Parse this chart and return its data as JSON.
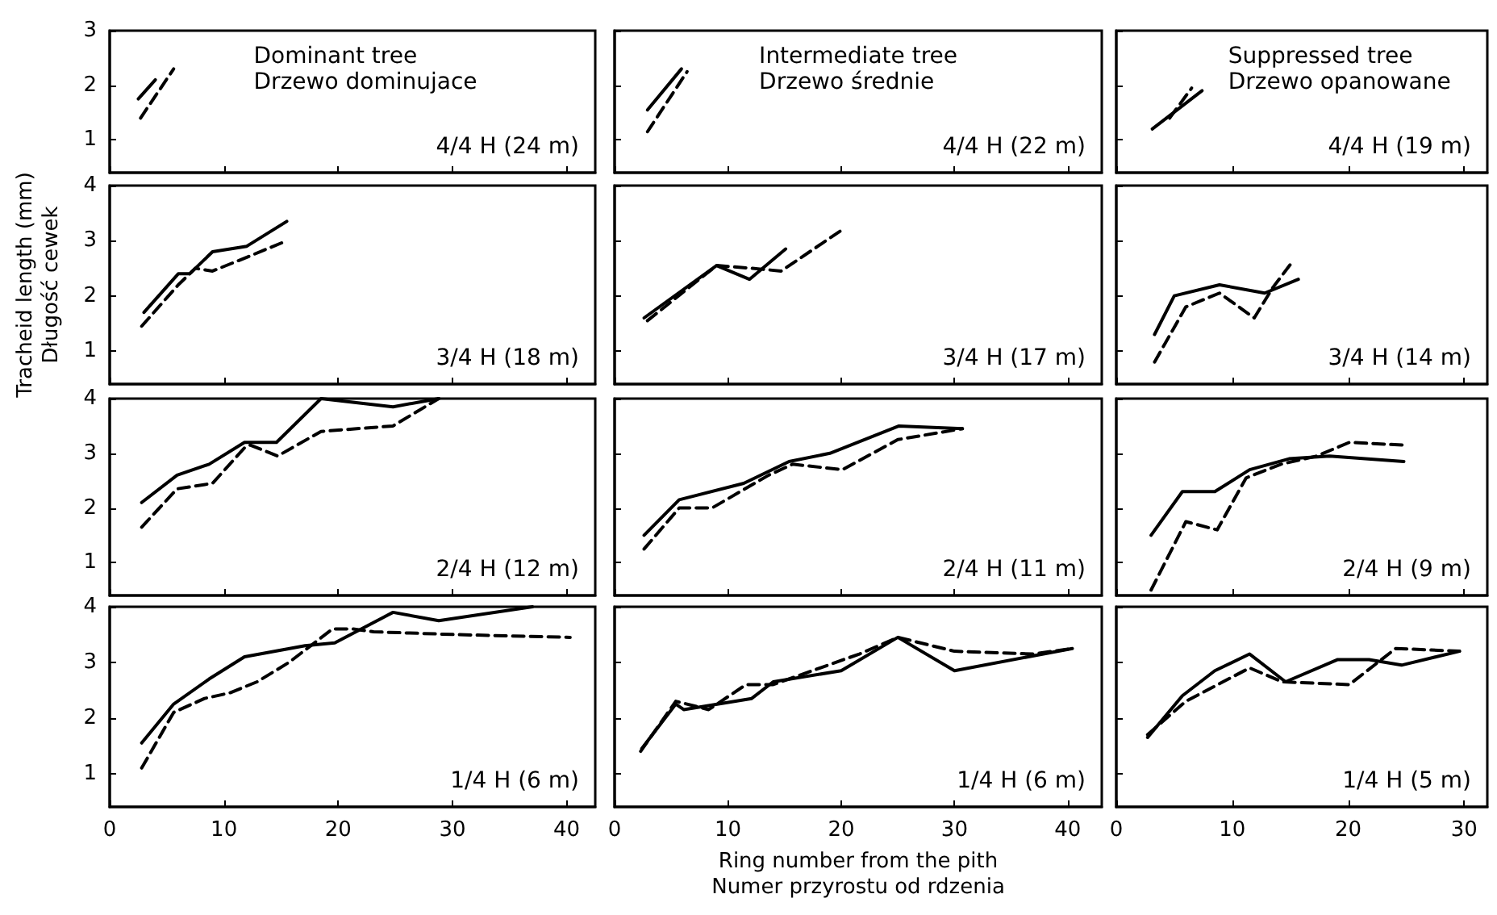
{
  "chart_data": [
    {
      "type": "line",
      "title": "Dominant tree",
      "subtitle": "Drzewo dominujace",
      "annotations": [
        "4/4 H (24 m)"
      ],
      "xlim": [
        0,
        42.5
      ],
      "xticks": [
        0,
        10,
        20,
        30,
        40
      ],
      "ylim": [
        0.4,
        3
      ],
      "yticks": [
        1,
        2,
        3
      ],
      "tick_labels": "y",
      "grid": false,
      "series": [
        {
          "color": "#000000",
          "line_style": "solid",
          "x": [
            2.5,
            4
          ],
          "values": [
            1.75,
            2.1
          ]
        },
        {
          "color": "#000000",
          "line_style": "dashed",
          "x": [
            2.7,
            5.6
          ],
          "values": [
            1.4,
            2.3
          ]
        }
      ]
    },
    {
      "type": "line",
      "title": "Intermediate tree",
      "subtitle": "Drzewo średnie",
      "annotations": [
        "4/4 H (22 m)"
      ],
      "xlim": [
        0,
        43
      ],
      "xticks": [
        0,
        10,
        20,
        30,
        40
      ],
      "ylim": [
        0.4,
        3
      ],
      "yticks": [
        1,
        2,
        3
      ],
      "tick_labels": false,
      "grid": false,
      "series": [
        {
          "color": "#000000",
          "line_style": "solid",
          "x": [
            2.9,
            5.9
          ],
          "values": [
            1.55,
            2.3
          ]
        },
        {
          "color": "#000000",
          "line_style": "dashed",
          "x": [
            2.9,
            6.4
          ],
          "values": [
            1.15,
            2.25
          ]
        }
      ]
    },
    {
      "type": "line",
      "title": "Suppressed tree",
      "subtitle": "Drzewo opanowane",
      "annotations": [
        "4/4 H (19 m)"
      ],
      "xlim": [
        0,
        32
      ],
      "xticks": [
        0,
        10,
        20,
        30
      ],
      "ylim": [
        0.4,
        3
      ],
      "yticks": [
        1,
        2,
        3
      ],
      "tick_labels": false,
      "grid": false,
      "series": [
        {
          "color": "#000000",
          "line_style": "solid",
          "x": [
            3.1,
            7.4
          ],
          "values": [
            1.2,
            1.9
          ]
        },
        {
          "color": "#000000",
          "line_style": "dashed",
          "x": [
            4.6,
            6.5
          ],
          "values": [
            1.4,
            1.95
          ]
        }
      ]
    },
    {
      "type": "line",
      "ylabel": "Tracheid length (mm)\nDługość cewek",
      "annotations": [
        "3/4 H (18 m)"
      ],
      "xlim": [
        0,
        42.5
      ],
      "xticks": [
        0,
        10,
        20,
        30,
        40
      ],
      "ylim": [
        0.4,
        4
      ],
      "yticks": [
        1,
        2,
        3,
        4
      ],
      "tick_labels": "y",
      "grid": false,
      "series": [
        {
          "color": "#000000",
          "line_style": "solid",
          "x": [
            3,
            6,
            7,
            9,
            12,
            15.5
          ],
          "values": [
            1.7,
            2.4,
            2.4,
            2.8,
            2.9,
            3.35
          ]
        },
        {
          "color": "#000000",
          "line_style": "dashed",
          "x": [
            2.8,
            6,
            7.5,
            9,
            12,
            15.5
          ],
          "values": [
            1.45,
            2.2,
            2.5,
            2.45,
            2.7,
            3.0
          ]
        }
      ]
    },
    {
      "type": "line",
      "annotations": [
        "3/4 H (17 m)"
      ],
      "xlim": [
        0,
        43
      ],
      "xticks": [
        0,
        10,
        20,
        30,
        40
      ],
      "ylim": [
        0.4,
        4
      ],
      "yticks": [
        1,
        2,
        3,
        4
      ],
      "tick_labels": false,
      "grid": false,
      "series": [
        {
          "color": "#000000",
          "line_style": "solid",
          "x": [
            2.6,
            9,
            11.9,
            15.1
          ],
          "values": [
            1.6,
            2.55,
            2.3,
            2.85
          ]
        },
        {
          "color": "#000000",
          "line_style": "dashed",
          "x": [
            2.9,
            9,
            12.1,
            14.7,
            20.1
          ],
          "values": [
            1.55,
            2.55,
            2.5,
            2.45,
            3.2
          ]
        }
      ]
    },
    {
      "type": "line",
      "annotations": [
        "3/4 H (14 m)"
      ],
      "xlim": [
        0,
        32
      ],
      "xticks": [
        0,
        10,
        20,
        30
      ],
      "ylim": [
        0.4,
        4
      ],
      "yticks": [
        1,
        2,
        3,
        4
      ],
      "tick_labels": false,
      "grid": false,
      "series": [
        {
          "color": "#000000",
          "line_style": "solid",
          "x": [
            3.3,
            5,
            8.9,
            12.8,
            15.7
          ],
          "values": [
            1.3,
            2.0,
            2.2,
            2.05,
            2.3
          ]
        },
        {
          "color": "#000000",
          "line_style": "dashed",
          "x": [
            3.3,
            6,
            8.9,
            11.9,
            13.5,
            15.3
          ],
          "values": [
            0.8,
            1.8,
            2.05,
            1.6,
            2.15,
            2.65
          ]
        }
      ]
    },
    {
      "type": "line",
      "annotations": [
        "2/4 H (12 m)"
      ],
      "xlim": [
        0,
        42.5
      ],
      "xticks": [
        0,
        10,
        20,
        30,
        40
      ],
      "ylim": [
        0.4,
        4
      ],
      "yticks": [
        1,
        2,
        3,
        4
      ],
      "tick_labels": "y",
      "grid": false,
      "series": [
        {
          "color": "#000000",
          "line_style": "solid",
          "x": [
            2.8,
            5.9,
            8.7,
            11.8,
            14.6,
            18.5,
            24.8,
            28.8
          ],
          "values": [
            2.1,
            2.6,
            2.8,
            3.2,
            3.2,
            4.0,
            3.85,
            4.0
          ]
        },
        {
          "color": "#000000",
          "line_style": "dashed",
          "x": [
            2.8,
            5.9,
            9,
            11.8,
            12.3,
            14.7,
            18.5,
            24.8,
            28.8
          ],
          "values": [
            1.65,
            2.35,
            2.45,
            3.1,
            3.15,
            2.95,
            3.4,
            3.5,
            4.0
          ]
        }
      ]
    },
    {
      "type": "line",
      "annotations": [
        "2/4 H (11 m)"
      ],
      "xlim": [
        0,
        43
      ],
      "xticks": [
        0,
        10,
        20,
        30,
        40
      ],
      "ylim": [
        0.4,
        4
      ],
      "yticks": [
        1,
        2,
        3,
        4
      ],
      "tick_labels": false,
      "grid": false,
      "series": [
        {
          "color": "#000000",
          "line_style": "solid",
          "x": [
            2.6,
            5.7,
            11.4,
            15.4,
            19,
            25.1,
            30.7
          ],
          "values": [
            1.5,
            2.15,
            2.45,
            2.85,
            3.0,
            3.5,
            3.45
          ]
        },
        {
          "color": "#000000",
          "line_style": "dashed",
          "x": [
            2.6,
            5.7,
            8.6,
            13.6,
            15.7,
            20.1,
            25,
            30.7
          ],
          "values": [
            1.25,
            2.0,
            2.0,
            2.6,
            2.8,
            2.7,
            3.25,
            3.45
          ]
        }
      ]
    },
    {
      "type": "line",
      "annotations": [
        "2/4 H (9 m)"
      ],
      "xlim": [
        0,
        32
      ],
      "xticks": [
        0,
        10,
        20,
        30
      ],
      "ylim": [
        0.4,
        4
      ],
      "yticks": [
        1,
        2,
        3,
        4
      ],
      "tick_labels": false,
      "grid": false,
      "series": [
        {
          "color": "#000000",
          "line_style": "solid",
          "x": [
            3,
            5.7,
            8.5,
            11.5,
            14.9,
            18.4,
            24.8
          ],
          "values": [
            1.5,
            2.3,
            2.3,
            2.7,
            2.9,
            2.95,
            2.85
          ]
        },
        {
          "color": "#000000",
          "line_style": "dashed",
          "x": [
            3,
            6,
            8.7,
            11.2,
            14.2,
            17.3,
            20.1,
            24.8
          ],
          "values": [
            0.5,
            1.75,
            1.6,
            2.55,
            2.8,
            2.95,
            3.2,
            3.15
          ]
        }
      ]
    },
    {
      "type": "line",
      "annotations": [
        "1/4 H (6 m)"
      ],
      "xlim": [
        0,
        42.5
      ],
      "xticks": [
        0,
        10,
        20,
        30,
        40
      ],
      "ylim": [
        0.4,
        4
      ],
      "yticks": [
        1,
        2,
        3,
        4
      ],
      "grid": false,
      "series": [
        {
          "color": "#000000",
          "line_style": "solid",
          "x": [
            2.8,
            5.6,
            8.7,
            11.8,
            17.1,
            19.7,
            24.8,
            28.8,
            37
          ],
          "values": [
            1.55,
            2.25,
            2.7,
            3.1,
            3.3,
            3.35,
            3.9,
            3.75,
            4.0
          ]
        },
        {
          "color": "#000000",
          "line_style": "dashed",
          "x": [
            2.8,
            5.6,
            8.3,
            10.5,
            12.9,
            15.7,
            19.5,
            21.3,
            23.1,
            30.2,
            40.3
          ],
          "values": [
            1.1,
            2.1,
            2.35,
            2.45,
            2.65,
            3.0,
            3.6,
            3.6,
            3.55,
            3.5,
            3.45
          ]
        }
      ]
    },
    {
      "type": "line",
      "xlabel": "Ring number from the pith\nNumer przyrostu od rdzenia",
      "annotations": [
        "1/4 H (6 m)"
      ],
      "xlim": [
        0,
        43
      ],
      "xticks": [
        0,
        10,
        20,
        30,
        40
      ],
      "ylim": [
        0.4,
        4
      ],
      "yticks": [
        1,
        2,
        3,
        4
      ],
      "tick_labels": "x",
      "grid": false,
      "series": [
        {
          "color": "#000000",
          "line_style": "solid",
          "x": [
            2.4,
            5.4,
            6.1,
            12.1,
            14,
            20,
            25,
            30,
            40.4
          ],
          "values": [
            1.45,
            2.25,
            2.15,
            2.35,
            2.65,
            2.85,
            3.45,
            2.85,
            3.25
          ]
        },
        {
          "color": "#000000",
          "line_style": "dashed",
          "x": [
            2.3,
            5.4,
            8.3,
            11.6,
            14,
            21.6,
            25,
            30,
            36.9,
            40.4
          ],
          "values": [
            1.4,
            2.3,
            2.15,
            2.6,
            2.6,
            3.15,
            3.45,
            3.2,
            3.15,
            3.25
          ]
        }
      ]
    },
    {
      "type": "line",
      "annotations": [
        "1/4 H (5 m)"
      ],
      "xlim": [
        0,
        32
      ],
      "xticks": [
        0,
        10,
        20,
        30
      ],
      "ylim": [
        0.4,
        4
      ],
      "yticks": [
        1,
        2,
        3,
        4
      ],
      "tick_labels": "x",
      "grid": false,
      "series": [
        {
          "color": "#000000",
          "line_style": "solid",
          "x": [
            2.7,
            5.7,
            8.5,
            11.5,
            14.6,
            19.1,
            21.8,
            24.6,
            29.6
          ],
          "values": [
            1.65,
            2.4,
            2.85,
            3.15,
            2.65,
            3.05,
            3.05,
            2.95,
            3.2
          ]
        },
        {
          "color": "#000000",
          "line_style": "dashed",
          "x": [
            2.7,
            6,
            11.5,
            14.3,
            20.1,
            24.1,
            29.6
          ],
          "values": [
            1.7,
            2.3,
            2.9,
            2.65,
            2.6,
            3.25,
            3.2
          ]
        }
      ]
    }
  ]
}
